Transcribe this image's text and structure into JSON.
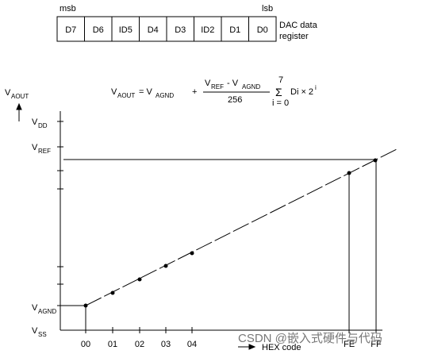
{
  "register": {
    "msb": "msb",
    "lsb": "lsb",
    "bits": [
      "D7",
      "D6",
      "ID5",
      "D4",
      "D3",
      "ID2",
      "D1",
      "D0"
    ],
    "label": [
      "DAC data",
      "register"
    ]
  },
  "equation": {
    "lhs": "V",
    "lhs_sub": "AOUT",
    "eq": "= V",
    "eq_sub": "AGND",
    "plus": "+",
    "num1": "V",
    "num1_sub": "REF",
    "num2": "- V",
    "num2_sub": "AGND",
    "den": "256",
    "sigma": "Σ",
    "upper": "7",
    "lower": "i = 0",
    "term": "Di × 2",
    "sup": "i"
  },
  "y_axis": {
    "title": "V",
    "title_sub": "AOUT",
    "labels": [
      {
        "v": "V",
        "sub": "DD"
      },
      {
        "v": "V",
        "sub": "REF"
      },
      {
        "v": "V",
        "sub": "AGND"
      },
      {
        "v": "V",
        "sub": "SS"
      }
    ]
  },
  "x_axis": {
    "labels": [
      "00",
      "01",
      "02",
      "03",
      "04",
      "FE",
      "FF"
    ],
    "title": "HEX code"
  },
  "watermark": "CSDN @嵌入式硬件与代码"
}
